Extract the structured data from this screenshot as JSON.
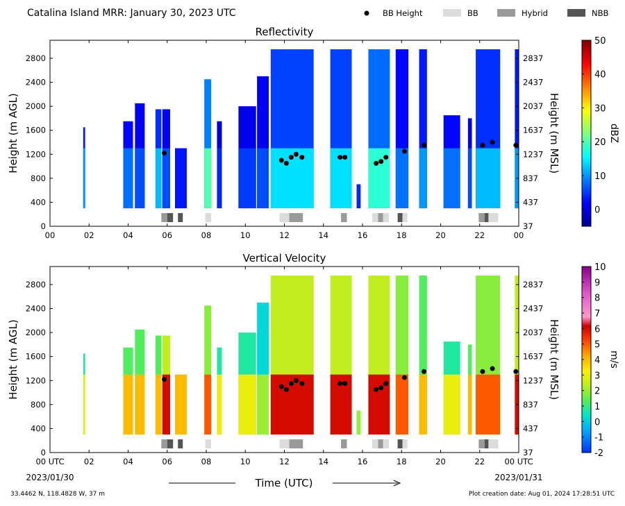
{
  "page": {
    "title": "Catalina Island MRR:  January 30, 2023 UTC",
    "legend": {
      "bb_height": "BB Height",
      "bb": "BB",
      "hybrid": "Hybrid",
      "nbb": "NBB",
      "colors": {
        "bb": "#dcdcdc",
        "hybrid": "#9a9a9a",
        "nbb": "#555555"
      }
    },
    "xlabel": "Time (UTC)",
    "start_utc_label": "00 UTC",
    "start_date": "2023/01/30",
    "end_utc_label": "00 UTC",
    "end_date": "2023/01/31",
    "location": "33.4462 N, 118.4828 W, 37 m",
    "creation": "Plot creation date: Aug 01, 2024 17:28:51 UTC"
  },
  "chart_data": [
    {
      "type": "heatmap",
      "title": "Reflectivity",
      "ylabel": "Height (m AGL)",
      "ylabel_right": "Height (m MSL)",
      "colorbar_label": "dBZ",
      "colorbar_ticks": [
        "50",
        "40",
        "30",
        "20",
        "10",
        "0"
      ],
      "colorbar_range": [
        -5,
        50
      ],
      "colormap": "jet",
      "xlim": [
        0,
        24
      ],
      "ylim": [
        0,
        3100
      ],
      "x_ticks": [
        "00",
        "02",
        "04",
        "06",
        "08",
        "10",
        "12",
        "14",
        "16",
        "18",
        "20",
        "22",
        "00"
      ],
      "y_ticks": [
        "0",
        "400",
        "800",
        "1200",
        "1600",
        "2000",
        "2400",
        "2800"
      ],
      "y_ticks_right": [
        "37",
        "437",
        "837",
        "1237",
        "1637",
        "2037",
        "2437",
        "2837"
      ],
      "bb_height": [
        {
          "t": 5.85,
          "h": 1220
        },
        {
          "t": 11.85,
          "h": 1100
        },
        {
          "t": 12.1,
          "h": 1050
        },
        {
          "t": 12.35,
          "h": 1150
        },
        {
          "t": 12.6,
          "h": 1200
        },
        {
          "t": 12.9,
          "h": 1150
        },
        {
          "t": 14.85,
          "h": 1150
        },
        {
          "t": 15.1,
          "h": 1150
        },
        {
          "t": 16.7,
          "h": 1050
        },
        {
          "t": 16.95,
          "h": 1080
        },
        {
          "t": 17.2,
          "h": 1150
        },
        {
          "t": 18.15,
          "h": 1250
        },
        {
          "t": 19.15,
          "h": 1350
        },
        {
          "t": 22.15,
          "h": 1350
        },
        {
          "t": 22.65,
          "h": 1400
        },
        {
          "t": 23.85,
          "h": 1350
        }
      ],
      "bb_type_segments": [
        {
          "start": 5.7,
          "end": 6.0,
          "type": "Hybrid"
        },
        {
          "start": 6.0,
          "end": 6.3,
          "type": "NBB"
        },
        {
          "start": 6.55,
          "end": 6.8,
          "type": "NBB"
        },
        {
          "start": 7.95,
          "end": 8.25,
          "type": "BB"
        },
        {
          "start": 11.75,
          "end": 12.25,
          "type": "BB"
        },
        {
          "start": 12.25,
          "end": 12.55,
          "type": "Hybrid"
        },
        {
          "start": 12.55,
          "end": 12.95,
          "type": "Hybrid"
        },
        {
          "start": 14.9,
          "end": 15.2,
          "type": "Hybrid"
        },
        {
          "start": 16.5,
          "end": 16.8,
          "type": "BB"
        },
        {
          "start": 16.8,
          "end": 17.05,
          "type": "Hybrid"
        },
        {
          "start": 17.05,
          "end": 17.35,
          "type": "BB"
        },
        {
          "start": 17.8,
          "end": 18.05,
          "type": "NBB"
        },
        {
          "start": 18.05,
          "end": 18.3,
          "type": "BB"
        },
        {
          "start": 21.95,
          "end": 22.25,
          "type": "Hybrid"
        },
        {
          "start": 22.25,
          "end": 22.45,
          "type": "NBB"
        },
        {
          "start": 22.45,
          "end": 22.95,
          "type": "BB"
        }
      ],
      "echo_columns": [
        {
          "start": 1.7,
          "end": 1.8,
          "top": 1650,
          "level": 10
        },
        {
          "start": 3.75,
          "end": 4.25,
          "top": 1750,
          "level": 8
        },
        {
          "start": 4.35,
          "end": 4.85,
          "top": 2050,
          "level": 6
        },
        {
          "start": 5.4,
          "end": 5.7,
          "top": 1950,
          "level": 12
        },
        {
          "start": 5.75,
          "end": 6.15,
          "top": 1950,
          "level": 6
        },
        {
          "start": 6.4,
          "end": 7.0,
          "top": 1300,
          "level": 3
        },
        {
          "start": 7.9,
          "end": 8.25,
          "top": 2450,
          "level": 20
        },
        {
          "start": 8.55,
          "end": 8.8,
          "top": 1750,
          "level": 4
        },
        {
          "start": 9.65,
          "end": 10.55,
          "top": 2000,
          "level": 5
        },
        {
          "start": 10.6,
          "end": 11.2,
          "top": 2500,
          "level": 6
        },
        {
          "start": 11.3,
          "end": 13.5,
          "top": 2950,
          "level": 14
        },
        {
          "start": 14.35,
          "end": 15.45,
          "top": 2950,
          "level": 14
        },
        {
          "start": 15.7,
          "end": 15.9,
          "top": 700,
          "level": 4
        },
        {
          "start": 16.3,
          "end": 17.4,
          "top": 2950,
          "level": 18
        },
        {
          "start": 17.7,
          "end": 18.35,
          "top": 2950,
          "level": 8
        },
        {
          "start": 18.9,
          "end": 19.3,
          "top": 2950,
          "level": 10
        },
        {
          "start": 20.15,
          "end": 21.0,
          "top": 1850,
          "level": 8
        },
        {
          "start": 21.4,
          "end": 21.6,
          "top": 1800,
          "level": 6
        },
        {
          "start": 21.8,
          "end": 23.05,
          "top": 2950,
          "level": 12
        },
        {
          "start": 23.8,
          "end": 24.0,
          "top": 2950,
          "level": 10
        }
      ]
    },
    {
      "type": "heatmap",
      "title": "Vertical Velocity",
      "ylabel": "Height (m AGL)",
      "ylabel_right": "Height (m MSL)",
      "colorbar_label": "m/s",
      "colorbar_ticks": [
        "10",
        "9",
        "8",
        "7",
        "6",
        "5",
        "4",
        "3",
        "2",
        "1",
        "0",
        "-1",
        "-2"
      ],
      "colorbar_range": [
        -2,
        10
      ],
      "colormap": "velocity",
      "xlim": [
        0,
        24
      ],
      "ylim": [
        0,
        3100
      ],
      "x_ticks": [
        "00 UTC",
        "02",
        "04",
        "06",
        "08",
        "10",
        "12",
        "14",
        "16",
        "18",
        "20",
        "22",
        "00 UTC"
      ],
      "y_ticks": [
        "0",
        "400",
        "800",
        "1200",
        "1600",
        "2000",
        "2400",
        "2800"
      ],
      "y_ticks_right": [
        "37",
        "437",
        "837",
        "1237",
        "1637",
        "2037",
        "2437",
        "2837"
      ],
      "bb_height": [
        {
          "t": 5.85,
          "h": 1220
        },
        {
          "t": 11.85,
          "h": 1100
        },
        {
          "t": 12.1,
          "h": 1050
        },
        {
          "t": 12.35,
          "h": 1150
        },
        {
          "t": 12.6,
          "h": 1200
        },
        {
          "t": 12.9,
          "h": 1150
        },
        {
          "t": 14.85,
          "h": 1150
        },
        {
          "t": 15.1,
          "h": 1150
        },
        {
          "t": 16.7,
          "h": 1050
        },
        {
          "t": 16.95,
          "h": 1080
        },
        {
          "t": 17.2,
          "h": 1150
        },
        {
          "t": 18.15,
          "h": 1250
        },
        {
          "t": 19.15,
          "h": 1350
        },
        {
          "t": 22.15,
          "h": 1350
        },
        {
          "t": 22.65,
          "h": 1400
        },
        {
          "t": 23.85,
          "h": 1350
        }
      ],
      "bb_type_segments": [
        {
          "start": 5.7,
          "end": 6.0,
          "type": "Hybrid"
        },
        {
          "start": 6.0,
          "end": 6.3,
          "type": "NBB"
        },
        {
          "start": 6.55,
          "end": 6.8,
          "type": "NBB"
        },
        {
          "start": 7.95,
          "end": 8.25,
          "type": "BB"
        },
        {
          "start": 11.75,
          "end": 12.25,
          "type": "BB"
        },
        {
          "start": 12.25,
          "end": 12.55,
          "type": "Hybrid"
        },
        {
          "start": 12.55,
          "end": 12.95,
          "type": "Hybrid"
        },
        {
          "start": 14.9,
          "end": 15.2,
          "type": "Hybrid"
        },
        {
          "start": 16.5,
          "end": 16.8,
          "type": "BB"
        },
        {
          "start": 16.8,
          "end": 17.05,
          "type": "Hybrid"
        },
        {
          "start": 17.05,
          "end": 17.35,
          "type": "BB"
        },
        {
          "start": 17.8,
          "end": 18.05,
          "type": "NBB"
        },
        {
          "start": 18.05,
          "end": 18.3,
          "type": "BB"
        },
        {
          "start": 21.95,
          "end": 22.25,
          "type": "Hybrid"
        },
        {
          "start": 22.25,
          "end": 22.45,
          "type": "NBB"
        },
        {
          "start": 22.45,
          "end": 22.95,
          "type": "BB"
        }
      ],
      "echo_columns": [
        {
          "start": 1.7,
          "end": 1.8,
          "top": 1650,
          "level": 3
        },
        {
          "start": 3.75,
          "end": 4.25,
          "top": 1750,
          "level": 4
        },
        {
          "start": 4.35,
          "end": 4.85,
          "top": 2050,
          "level": 4
        },
        {
          "start": 5.4,
          "end": 5.7,
          "top": 1950,
          "level": 4
        },
        {
          "start": 5.75,
          "end": 6.15,
          "top": 1950,
          "level": 6
        },
        {
          "start": 6.4,
          "end": 7.0,
          "top": 1300,
          "level": 4
        },
        {
          "start": 7.9,
          "end": 8.25,
          "top": 2450,
          "level": 5
        },
        {
          "start": 8.55,
          "end": 8.8,
          "top": 1750,
          "level": 3
        },
        {
          "start": 9.65,
          "end": 10.55,
          "top": 2000,
          "level": 3
        },
        {
          "start": 10.6,
          "end": 11.2,
          "top": 2500,
          "level": 2
        },
        {
          "start": 11.3,
          "end": 13.5,
          "top": 2950,
          "level": 6
        },
        {
          "start": 14.35,
          "end": 15.45,
          "top": 2950,
          "level": 6
        },
        {
          "start": 15.7,
          "end": 15.9,
          "top": 700,
          "level": 2
        },
        {
          "start": 16.3,
          "end": 17.4,
          "top": 2950,
          "level": 6
        },
        {
          "start": 17.7,
          "end": 18.35,
          "top": 2950,
          "level": 5
        },
        {
          "start": 18.9,
          "end": 19.3,
          "top": 2950,
          "level": 4
        },
        {
          "start": 20.15,
          "end": 21.0,
          "top": 1850,
          "level": 3
        },
        {
          "start": 21.4,
          "end": 21.6,
          "top": 1800,
          "level": 4
        },
        {
          "start": 21.8,
          "end": 23.05,
          "top": 2950,
          "level": 5
        },
        {
          "start": 23.8,
          "end": 24.0,
          "top": 2950,
          "level": 6
        }
      ]
    }
  ]
}
